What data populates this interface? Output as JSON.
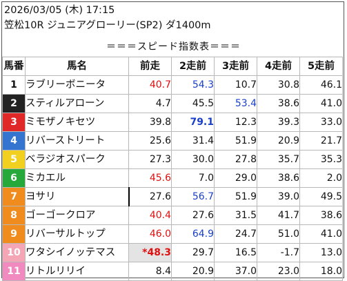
{
  "header": {
    "datetime": "2026/03/05 (木) 17:15",
    "race": "笠松10R ジュニアグローリー(SP2) ダ1400m"
  },
  "subtitle": "＝＝＝スピード指数表＝＝＝",
  "columns": [
    "馬番",
    "馬名",
    "前走",
    "2走前",
    "3走前",
    "4走前",
    "5走前"
  ],
  "colors": {
    "red": "#e01010",
    "blue": "#1a3fc8",
    "post_1": "#ffffff",
    "post_2": "#222222",
    "post_3": "#e02828",
    "post_4": "#3575d0",
    "post_5": "#f2d020",
    "post_6": "#27a83a",
    "post_7": "#f08c1e",
    "post_8": "#f08c1e",
    "post_9": "#f08c1e",
    "post_10": "#f4a6b6",
    "post_11": "#f08abf"
  },
  "rows": [
    {
      "no": "1",
      "name": "ラブリーボニータ",
      "vals": [
        {
          "t": "40.7",
          "c": "red"
        },
        {
          "t": "54.3",
          "c": "blue"
        },
        {
          "t": "10.7"
        },
        {
          "t": "30.8"
        },
        {
          "t": "46.1"
        }
      ]
    },
    {
      "no": "2",
      "name": "スティルアローン",
      "vals": [
        {
          "t": "4.7"
        },
        {
          "t": "45.5"
        },
        {
          "t": "53.4",
          "c": "blue"
        },
        {
          "t": "38.6"
        },
        {
          "t": "41.0"
        }
      ]
    },
    {
      "no": "3",
      "name": "ミモザノキセツ",
      "vals": [
        {
          "t": "39.8"
        },
        {
          "t": "79.1",
          "c": "blue",
          "b": true
        },
        {
          "t": "12.3"
        },
        {
          "t": "39.3"
        },
        {
          "t": "33.0"
        }
      ]
    },
    {
      "no": "4",
      "name": "リバーストリート",
      "vals": [
        {
          "t": "25.6"
        },
        {
          "t": "31.4"
        },
        {
          "t": "51.9"
        },
        {
          "t": "20.9"
        },
        {
          "t": "21.7"
        }
      ]
    },
    {
      "no": "5",
      "name": "ベラジオスパーク",
      "vals": [
        {
          "t": "27.3"
        },
        {
          "t": "30.0"
        },
        {
          "t": "27.8"
        },
        {
          "t": "35.7"
        },
        {
          "t": "35.3"
        }
      ]
    },
    {
      "no": "6",
      "name": "ミカエル",
      "vals": [
        {
          "t": "45.6",
          "c": "red"
        },
        {
          "t": "7.0"
        },
        {
          "t": "29.0"
        },
        {
          "t": "38.6"
        },
        {
          "t": "2.0"
        }
      ]
    },
    {
      "no": "7",
      "name": "ヨサリ",
      "vals": [
        {
          "t": "27.6"
        },
        {
          "t": "56.7",
          "c": "blue"
        },
        {
          "t": "51.9"
        },
        {
          "t": "39.0"
        },
        {
          "t": "49.5"
        }
      ]
    },
    {
      "no": "8",
      "name": "ゴーゴークロア",
      "vals": [
        {
          "t": "40.4",
          "c": "red"
        },
        {
          "t": "27.6"
        },
        {
          "t": "31.5"
        },
        {
          "t": "41.7"
        },
        {
          "t": "38.6"
        }
      ]
    },
    {
      "no": "9",
      "name": "リバーサルトップ",
      "vals": [
        {
          "t": "46.0",
          "c": "red"
        },
        {
          "t": "64.9",
          "c": "blue"
        },
        {
          "t": "24.7"
        },
        {
          "t": "51.0"
        },
        {
          "t": "41.0"
        }
      ]
    },
    {
      "no": "10",
      "name": "ワタシイノッテマス",
      "vals": [
        {
          "t": "*48.3",
          "c": "red",
          "b": true,
          "hl": true
        },
        {
          "t": "29.7"
        },
        {
          "t": "16.5"
        },
        {
          "t": "-1.7"
        },
        {
          "t": "13.0"
        }
      ]
    },
    {
      "no": "11",
      "name": "リトルリリイ",
      "vals": [
        {
          "t": "8.4"
        },
        {
          "t": "20.9"
        },
        {
          "t": "37.0"
        },
        {
          "t": "23.0"
        },
        {
          "t": "18.0"
        }
      ]
    }
  ]
}
